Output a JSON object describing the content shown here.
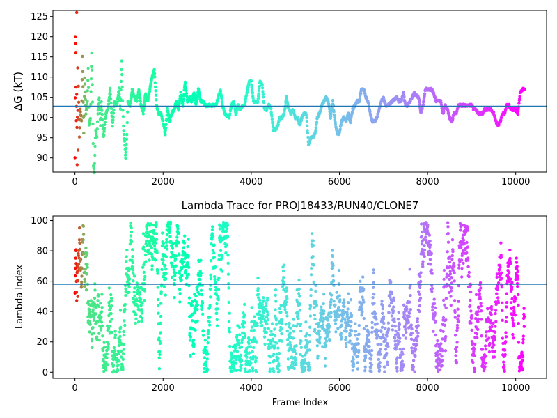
{
  "chart_data": [
    {
      "type": "scatter",
      "title": "",
      "xlabel": "",
      "ylabel": "ΔG (kT)",
      "xlim": [
        -500,
        10700
      ],
      "ylim": [
        86.5,
        126.5
      ],
      "xticks": [
        0,
        2000,
        4000,
        6000,
        8000,
        10000
      ],
      "yticks": [
        90,
        95,
        100,
        105,
        110,
        115,
        120,
        125
      ],
      "hline": 102.8,
      "hline_color": "#1f77b4",
      "colormap": "rainbow (reversed along frame index: red at 0, purple at 10200)",
      "n_frames": 10200,
      "trace": [
        [
          0,
          90
        ],
        [
          10,
          120
        ],
        [
          20,
          116
        ],
        [
          30,
          99
        ],
        [
          40,
          106
        ],
        [
          50,
          88.5
        ],
        [
          60,
          112
        ],
        [
          70,
          92
        ],
        [
          80,
          108
        ],
        [
          100,
          95
        ],
        [
          120,
          102
        ],
        [
          150,
          99
        ],
        [
          170,
          115
        ],
        [
          200,
          96
        ],
        [
          220,
          110
        ],
        [
          250,
          101
        ],
        [
          280,
          104
        ],
        [
          300,
          112
        ],
        [
          320,
          98
        ],
        [
          350,
          100
        ],
        [
          380,
          116
        ],
        [
          400,
          104
        ],
        [
          420,
          88
        ],
        [
          440,
          86.5
        ],
        [
          470,
          97
        ],
        [
          500,
          95
        ],
        [
          520,
          101
        ],
        [
          550,
          105
        ],
        [
          580,
          98
        ],
        [
          600,
          104
        ],
        [
          650,
          95
        ],
        [
          700,
          101
        ],
        [
          750,
          102
        ],
        [
          800,
          107
        ],
        [
          850,
          98
        ],
        [
          900,
          104
        ],
        [
          950,
          103
        ],
        [
          1000,
          107
        ],
        [
          1030,
          102
        ],
        [
          1060,
          114
        ],
        [
          1080,
          104
        ],
        [
          1100,
          98
        ],
        [
          1150,
          90
        ],
        [
          1180,
          96
        ],
        [
          1200,
          104
        ],
        [
          1250,
          103
        ],
        [
          1300,
          107
        ],
        [
          1350,
          105
        ],
        [
          1400,
          104
        ],
        [
          1450,
          107
        ],
        [
          1500,
          103
        ],
        [
          1550,
          101
        ],
        [
          1600,
          106
        ],
        [
          1650,
          104
        ],
        [
          1700,
          107
        ],
        [
          1750,
          110
        ],
        [
          1800,
          112
        ],
        [
          1850,
          103
        ],
        [
          1900,
          101
        ],
        [
          1950,
          101
        ],
        [
          2000,
          99
        ],
        [
          2050,
          96
        ],
        [
          2100,
          102
        ],
        [
          2150,
          99
        ],
        [
          2200,
          101
        ],
        [
          2250,
          102
        ],
        [
          2300,
          104
        ],
        [
          2350,
          102
        ],
        [
          2400,
          106
        ],
        [
          2450,
          103
        ],
        [
          2500,
          109
        ],
        [
          2550,
          104
        ],
        [
          2600,
          105
        ],
        [
          2650,
          104
        ],
        [
          2700,
          106
        ],
        [
          2750,
          103
        ],
        [
          2800,
          107
        ],
        [
          2850,
          104
        ],
        [
          2900,
          104
        ],
        [
          2950,
          103
        ],
        [
          3000,
          103
        ],
        [
          3100,
          103
        ],
        [
          3200,
          103
        ],
        [
          3250,
          105
        ],
        [
          3300,
          107
        ],
        [
          3350,
          103
        ],
        [
          3400,
          101
        ],
        [
          3500,
          100
        ],
        [
          3550,
          103
        ],
        [
          3600,
          104
        ],
        [
          3650,
          101
        ],
        [
          3700,
          103
        ],
        [
          3750,
          102
        ],
        [
          3800,
          103
        ],
        [
          3850,
          103
        ],
        [
          3900,
          106
        ],
        [
          3950,
          109
        ],
        [
          4000,
          109
        ],
        [
          4050,
          104
        ],
        [
          4100,
          104
        ],
        [
          4150,
          104
        ],
        [
          4200,
          109
        ],
        [
          4250,
          108
        ],
        [
          4300,
          102
        ],
        [
          4350,
          102
        ],
        [
          4400,
          103
        ],
        [
          4450,
          102
        ],
        [
          4500,
          97
        ],
        [
          4550,
          97
        ],
        [
          4600,
          98
        ],
        [
          4650,
          100
        ],
        [
          4700,
          100
        ],
        [
          4750,
          101
        ],
        [
          4800,
          105
        ],
        [
          4850,
          102
        ],
        [
          4900,
          101
        ],
        [
          4950,
          102
        ],
        [
          5000,
          100
        ],
        [
          5050,
          100
        ],
        [
          5100,
          98
        ],
        [
          5150,
          100
        ],
        [
          5200,
          101
        ],
        [
          5250,
          101
        ],
        [
          5300,
          93
        ],
        [
          5350,
          95
        ],
        [
          5400,
          95
        ],
        [
          5450,
          96
        ],
        [
          5500,
          100
        ],
        [
          5550,
          101
        ],
        [
          5600,
          103
        ],
        [
          5650,
          104
        ],
        [
          5700,
          105
        ],
        [
          5750,
          104
        ],
        [
          5800,
          100
        ],
        [
          5850,
          104
        ],
        [
          5900,
          99
        ],
        [
          5950,
          96
        ],
        [
          6000,
          96
        ],
        [
          6050,
          99
        ],
        [
          6100,
          100
        ],
        [
          6150,
          99
        ],
        [
          6200,
          101
        ],
        [
          6250,
          99
        ],
        [
          6300,
          102
        ],
        [
          6350,
          103
        ],
        [
          6400,
          104
        ],
        [
          6450,
          104
        ],
        [
          6500,
          107
        ],
        [
          6550,
          107
        ],
        [
          6600,
          105
        ],
        [
          6650,
          104
        ],
        [
          6700,
          101
        ],
        [
          6750,
          99
        ],
        [
          6800,
          99
        ],
        [
          6850,
          100
        ],
        [
          6900,
          102
        ],
        [
          6950,
          104
        ],
        [
          7000,
          105
        ],
        [
          7050,
          103
        ],
        [
          7100,
          103
        ],
        [
          7200,
          104
        ],
        [
          7300,
          105
        ],
        [
          7350,
          104
        ],
        [
          7400,
          104
        ],
        [
          7450,
          106
        ],
        [
          7500,
          103
        ],
        [
          7550,
          103
        ],
        [
          7600,
          104
        ],
        [
          7700,
          106
        ],
        [
          7800,
          105
        ],
        [
          7850,
          101
        ],
        [
          7900,
          103
        ],
        [
          7950,
          107
        ],
        [
          8000,
          107
        ],
        [
          8100,
          107
        ],
        [
          8200,
          104
        ],
        [
          8300,
          104
        ],
        [
          8350,
          101
        ],
        [
          8400,
          103
        ],
        [
          8450,
          102
        ],
        [
          8500,
          100
        ],
        [
          8550,
          99
        ],
        [
          8600,
          101
        ],
        [
          8650,
          101
        ],
        [
          8700,
          103
        ],
        [
          8800,
          103
        ],
        [
          8900,
          103
        ],
        [
          9000,
          103
        ],
        [
          9050,
          102
        ],
        [
          9100,
          102
        ],
        [
          9150,
          101
        ],
        [
          9200,
          101
        ],
        [
          9250,
          101
        ],
        [
          9300,
          102
        ],
        [
          9350,
          102
        ],
        [
          9400,
          102
        ],
        [
          9450,
          102
        ],
        [
          9500,
          101
        ],
        [
          9550,
          99
        ],
        [
          9600,
          98
        ],
        [
          9650,
          99
        ],
        [
          9700,
          101
        ],
        [
          9750,
          101
        ],
        [
          9800,
          103
        ],
        [
          9850,
          103
        ],
        [
          9900,
          102
        ],
        [
          9950,
          102
        ],
        [
          10000,
          102
        ],
        [
          10050,
          101
        ],
        [
          10100,
          106
        ],
        [
          10150,
          107
        ],
        [
          10200,
          107
        ]
      ]
    },
    {
      "type": "scatter",
      "title": "Lambda Trace for PROJ18433/RUN40/CLONE7",
      "xlabel": "Frame Index",
      "ylabel": "Lambda Index",
      "xlim": [
        -500,
        10700
      ],
      "ylim": [
        -4,
        103
      ],
      "xticks": [
        0,
        2000,
        4000,
        6000,
        8000,
        10000
      ],
      "yticks": [
        0,
        20,
        40,
        60,
        80,
        100
      ],
      "hline": 58,
      "hline_color": "#1f77b4",
      "colormap": "rainbow (reversed along frame index: red at 0, purple at 10200)",
      "lambda_range": [
        0,
        99
      ],
      "n_frames": 10200,
      "trace_description": "Lambda index random-walks over 0–99 across all frames"
    }
  ]
}
